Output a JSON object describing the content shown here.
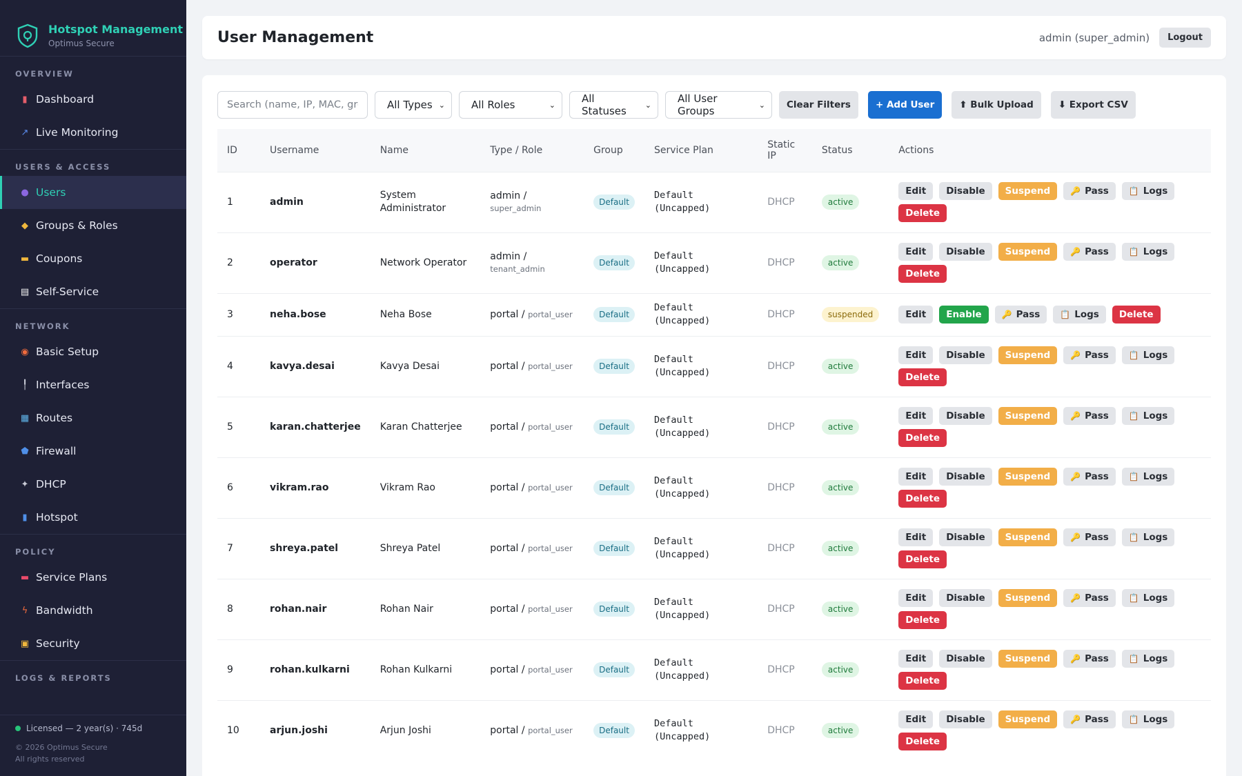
{
  "brand": {
    "title": "Hotspot Management",
    "subtitle": "Optimus Secure"
  },
  "sidebar": {
    "sections": [
      {
        "title": "OVERVIEW",
        "items": [
          {
            "label": "Dashboard",
            "icon": "bar-chart-icon",
            "glyph": "▮",
            "color": "#e35d6a"
          },
          {
            "label": "Live Monitoring",
            "icon": "trend-chart-icon",
            "glyph": "↗",
            "color": "#5b8def"
          }
        ]
      },
      {
        "title": "USERS & ACCESS",
        "items": [
          {
            "label": "Users",
            "icon": "users-icon",
            "glyph": "●",
            "color": "#8b67e0",
            "active": true
          },
          {
            "label": "Groups & Roles",
            "icon": "tag-icon",
            "glyph": "◆",
            "color": "#f0b73d"
          },
          {
            "label": "Coupons",
            "icon": "ticket-icon",
            "glyph": "▬",
            "color": "#f0b73d"
          },
          {
            "label": "Self-Service",
            "icon": "memo-icon",
            "glyph": "▤",
            "color": "#f2f2f2"
          }
        ]
      },
      {
        "title": "NETWORK",
        "items": [
          {
            "label": "Basic Setup",
            "icon": "compass-icon",
            "glyph": "◉",
            "color": "#f06b3d"
          },
          {
            "label": "Interfaces",
            "icon": "ethernet-icon",
            "glyph": "╿",
            "color": "#c9cbd6"
          },
          {
            "label": "Routes",
            "icon": "map-icon",
            "glyph": "▦",
            "color": "#5fb3e8"
          },
          {
            "label": "Firewall",
            "icon": "shield-icon",
            "glyph": "⬟",
            "color": "#4f8fe8"
          },
          {
            "label": "DHCP",
            "icon": "satellite-icon",
            "glyph": "✦",
            "color": "#c9cbd6"
          },
          {
            "label": "Hotspot",
            "icon": "signal-icon",
            "glyph": "▮",
            "color": "#4f8fe8"
          }
        ]
      },
      {
        "title": "POLICY",
        "items": [
          {
            "label": "Service Plans",
            "icon": "card-icon",
            "glyph": "▬",
            "color": "#e84a6a"
          },
          {
            "label": "Bandwidth",
            "icon": "lightning-icon",
            "glyph": "ϟ",
            "color": "#f06b3d"
          },
          {
            "label": "Security",
            "icon": "lock-icon",
            "glyph": "▣",
            "color": "#f0b73d"
          }
        ]
      },
      {
        "title": "LOGS & REPORTS",
        "items": []
      }
    ],
    "footer": {
      "license": "Licensed — 2 year(s) · 745d",
      "copyright": "© 2026 Optimus Secure",
      "rights": "All rights reserved"
    }
  },
  "header": {
    "title": "User Management",
    "user": "admin (super_admin)",
    "logout": "Logout"
  },
  "filters": {
    "search_placeholder": "Search (name, IP, MAC, group)",
    "types": "All Types",
    "roles": "All Roles",
    "statuses": "All Statuses",
    "groups": "All User Groups",
    "clear": "Clear Filters",
    "add": "+ Add User",
    "bulk": "⬆ Bulk Upload",
    "export": "⬇ Export CSV"
  },
  "table": {
    "headers": {
      "id": "ID",
      "username": "Username",
      "name": "Name",
      "type_role": "Type / Role",
      "group": "Group",
      "plan": "Service Plan",
      "static_ip": "Static IP",
      "status": "Status",
      "actions": "Actions"
    },
    "action_labels": {
      "edit": "Edit",
      "disable": "Disable",
      "enable": "Enable",
      "suspend": "Suspend",
      "pass": "Pass",
      "logs": "Logs",
      "delete": "Delete"
    },
    "rows": [
      {
        "id": "1",
        "username": "admin",
        "name": "System Administrator",
        "type": "admin",
        "role": "super_admin",
        "group": "Default",
        "plan_line1": "Default",
        "plan_line2": "(Uncapped)",
        "ip": "DHCP",
        "status": "active"
      },
      {
        "id": "2",
        "username": "operator",
        "name": "Network Operator",
        "type": "admin",
        "role": "tenant_admin",
        "group": "Default",
        "plan_line1": "Default",
        "plan_line2": "(Uncapped)",
        "ip": "DHCP",
        "status": "active"
      },
      {
        "id": "3",
        "username": "neha.bose",
        "name": "Neha Bose",
        "type": "portal",
        "role": "portal_user",
        "group": "Default",
        "plan_line1": "Default",
        "plan_line2": "(Uncapped)",
        "ip": "DHCP",
        "status": "suspended"
      },
      {
        "id": "4",
        "username": "kavya.desai",
        "name": "Kavya Desai",
        "type": "portal",
        "role": "portal_user",
        "group": "Default",
        "plan_line1": "Default",
        "plan_line2": "(Uncapped)",
        "ip": "DHCP",
        "status": "active"
      },
      {
        "id": "5",
        "username": "karan.chatterjee",
        "name": "Karan Chatterjee",
        "type": "portal",
        "role": "portal_user",
        "group": "Default",
        "plan_line1": "Default",
        "plan_line2": "(Uncapped)",
        "ip": "DHCP",
        "status": "active"
      },
      {
        "id": "6",
        "username": "vikram.rao",
        "name": "Vikram Rao",
        "type": "portal",
        "role": "portal_user",
        "group": "Default",
        "plan_line1": "Default",
        "plan_line2": "(Uncapped)",
        "ip": "DHCP",
        "status": "active"
      },
      {
        "id": "7",
        "username": "shreya.patel",
        "name": "Shreya Patel",
        "type": "portal",
        "role": "portal_user",
        "group": "Default",
        "plan_line1": "Default",
        "plan_line2": "(Uncapped)",
        "ip": "DHCP",
        "status": "active"
      },
      {
        "id": "8",
        "username": "rohan.nair",
        "name": "Rohan Nair",
        "type": "portal",
        "role": "portal_user",
        "group": "Default",
        "plan_line1": "Default",
        "plan_line2": "(Uncapped)",
        "ip": "DHCP",
        "status": "active"
      },
      {
        "id": "9",
        "username": "rohan.kulkarni",
        "name": "Rohan Kulkarni",
        "type": "portal",
        "role": "portal_user",
        "group": "Default",
        "plan_line1": "Default",
        "plan_line2": "(Uncapped)",
        "ip": "DHCP",
        "status": "active"
      },
      {
        "id": "10",
        "username": "arjun.joshi",
        "name": "Arjun Joshi",
        "type": "portal",
        "role": "portal_user",
        "group": "Default",
        "plan_line1": "Default",
        "plan_line2": "(Uncapped)",
        "ip": "DHCP",
        "status": "active"
      }
    ]
  },
  "colors": {
    "sidebar_bg": "#1e2035",
    "accent": "#2fd0b5",
    "primary": "#1a6fd1",
    "danger": "#dc3444",
    "warning": "#f2ae48",
    "success": "#22a54b"
  }
}
